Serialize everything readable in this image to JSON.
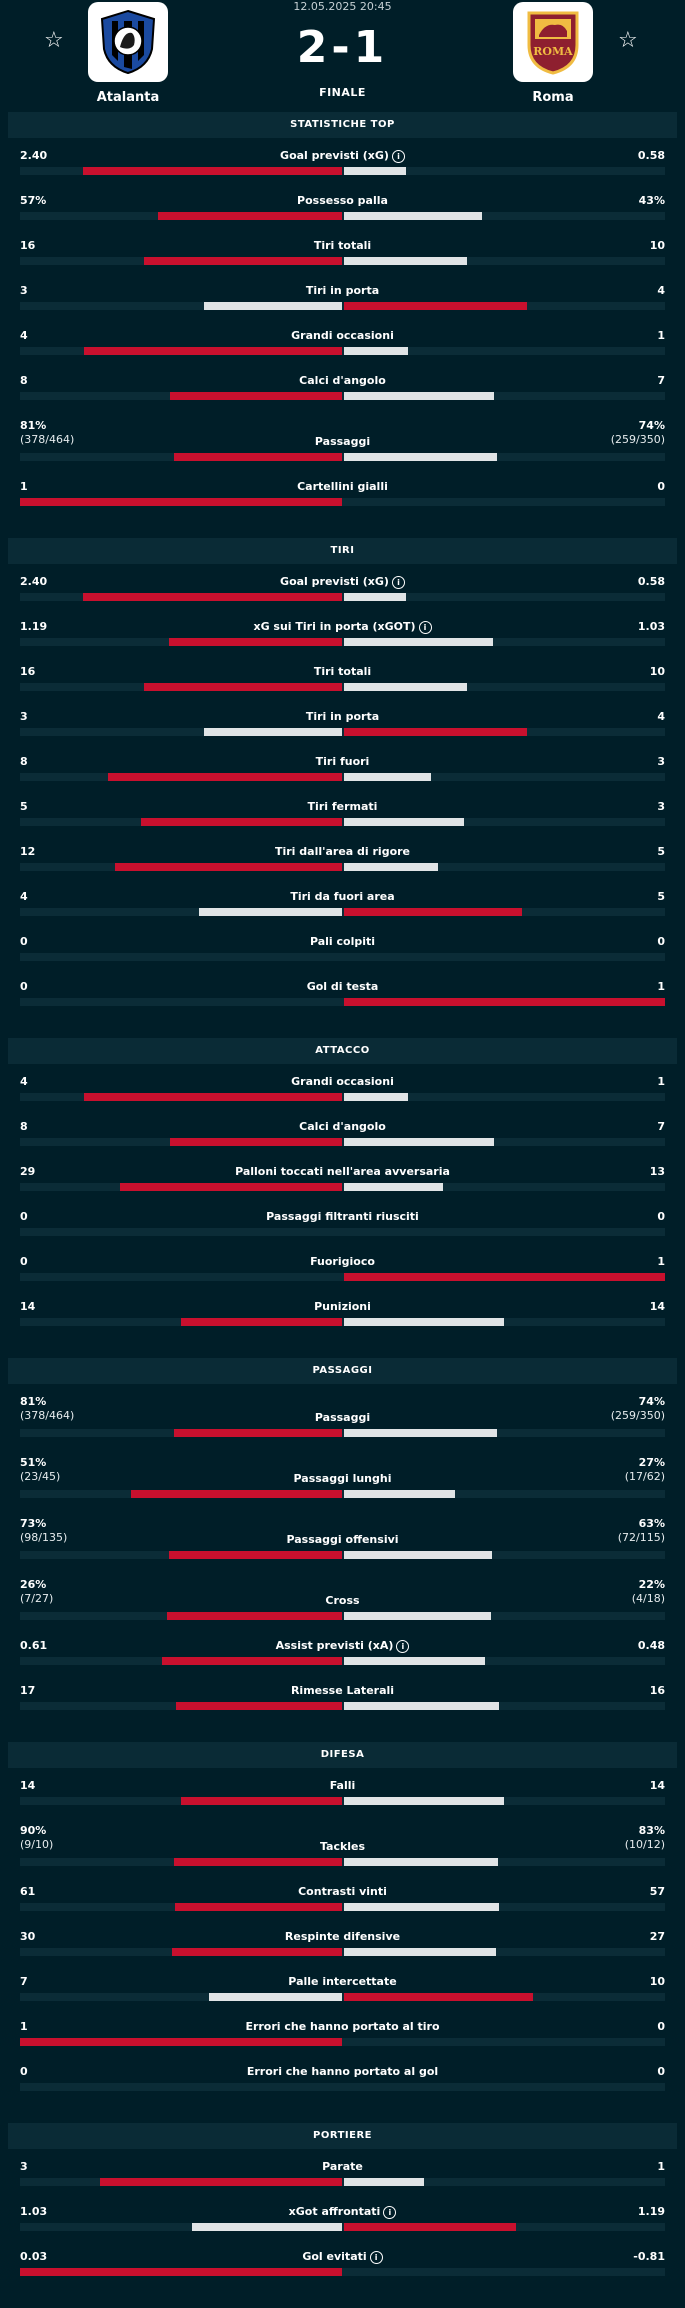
{
  "match": {
    "datetime": "12.05.2025 20:45",
    "score": "2-1",
    "status": "FINALE",
    "home_team": "Atalanta",
    "away_team": "Roma",
    "home_logo_text": "ATALANTA",
    "away_logo_text": "ROMA"
  },
  "icons": {
    "favorite": "star-icon",
    "info": "info-icon"
  },
  "colors": {
    "background": "#001e28",
    "accent": "#c8102e",
    "neutral_bar": "#e0e4e6",
    "track": "#0b2c37"
  },
  "sections": [
    {
      "title": "STATISTICHE TOP",
      "rows": [
        {
          "label": "Goal previsti (xG)",
          "info": true,
          "home": "2.40",
          "away": "0.58",
          "home_value": 2.4,
          "away_value": 0.58
        },
        {
          "label": "Possesso palla",
          "home": "57%",
          "away": "43%",
          "home_value": 57,
          "away_value": 43
        },
        {
          "label": "Tiri totali",
          "home": "16",
          "away": "10",
          "home_value": 16,
          "away_value": 10
        },
        {
          "label": "Tiri in porta",
          "home": "3",
          "away": "4",
          "home_value": 3,
          "away_value": 4
        },
        {
          "label": "Grandi occasioni",
          "home": "4",
          "away": "1",
          "home_value": 4,
          "away_value": 1
        },
        {
          "label": "Calci d'angolo",
          "home": "8",
          "away": "7",
          "home_value": 8,
          "away_value": 7
        },
        {
          "label": "Passaggi",
          "home": "81%",
          "home_sub": "(378/464)",
          "away": "74%",
          "away_sub": "(259/350)",
          "home_value": 81,
          "away_value": 74
        },
        {
          "label": "Cartellini gialli",
          "home": "1",
          "away": "0",
          "home_value": 1,
          "away_value": 0
        }
      ]
    },
    {
      "title": "TIRI",
      "rows": [
        {
          "label": "Goal previsti (xG)",
          "info": true,
          "home": "2.40",
          "away": "0.58",
          "home_value": 2.4,
          "away_value": 0.58
        },
        {
          "label": "xG sui Tiri in porta (xGOT)",
          "info": true,
          "home": "1.19",
          "away": "1.03",
          "home_value": 1.19,
          "away_value": 1.03
        },
        {
          "label": "Tiri totali",
          "home": "16",
          "away": "10",
          "home_value": 16,
          "away_value": 10
        },
        {
          "label": "Tiri in porta",
          "home": "3",
          "away": "4",
          "home_value": 3,
          "away_value": 4
        },
        {
          "label": "Tiri fuori",
          "home": "8",
          "away": "3",
          "home_value": 8,
          "away_value": 3
        },
        {
          "label": "Tiri fermati",
          "home": "5",
          "away": "3",
          "home_value": 5,
          "away_value": 3
        },
        {
          "label": "Tiri dall'area di rigore",
          "home": "12",
          "away": "5",
          "home_value": 12,
          "away_value": 5
        },
        {
          "label": "Tiri da fuori area",
          "home": "4",
          "away": "5",
          "home_value": 4,
          "away_value": 5
        },
        {
          "label": "Pali colpiti",
          "home": "0",
          "away": "0",
          "home_value": 0,
          "away_value": 0
        },
        {
          "label": "Gol di testa",
          "home": "0",
          "away": "1",
          "home_value": 0,
          "away_value": 1
        }
      ]
    },
    {
      "title": "ATTACCO",
      "rows": [
        {
          "label": "Grandi occasioni",
          "home": "4",
          "away": "1",
          "home_value": 4,
          "away_value": 1
        },
        {
          "label": "Calci d'angolo",
          "home": "8",
          "away": "7",
          "home_value": 8,
          "away_value": 7
        },
        {
          "label": "Palloni toccati nell'area avversaria",
          "home": "29",
          "away": "13",
          "home_value": 29,
          "away_value": 13
        },
        {
          "label": "Passaggi filtranti riusciti",
          "home": "0",
          "away": "0",
          "home_value": 0,
          "away_value": 0
        },
        {
          "label": "Fuorigioco",
          "home": "0",
          "away": "1",
          "home_value": 0,
          "away_value": 1
        },
        {
          "label": "Punizioni",
          "home": "14",
          "away": "14",
          "home_value": 14,
          "away_value": 14
        }
      ]
    },
    {
      "title": "PASSAGGI",
      "rows": [
        {
          "label": "Passaggi",
          "home": "81%",
          "home_sub": "(378/464)",
          "away": "74%",
          "away_sub": "(259/350)",
          "home_value": 81,
          "away_value": 74
        },
        {
          "label": "Passaggi lunghi",
          "home": "51%",
          "home_sub": "(23/45)",
          "away": "27%",
          "away_sub": "(17/62)",
          "home_value": 51,
          "away_value": 27
        },
        {
          "label": "Passaggi offensivi",
          "home": "73%",
          "home_sub": "(98/135)",
          "away": "63%",
          "away_sub": "(72/115)",
          "home_value": 73,
          "away_value": 63
        },
        {
          "label": "Cross",
          "home": "26%",
          "home_sub": "(7/27)",
          "away": "22%",
          "away_sub": "(4/18)",
          "home_value": 26,
          "away_value": 22
        },
        {
          "label": "Assist previsti (xA)",
          "info": true,
          "home": "0.61",
          "away": "0.48",
          "home_value": 0.61,
          "away_value": 0.48
        },
        {
          "label": "Rimesse Laterali",
          "home": "17",
          "away": "16",
          "home_value": 17,
          "away_value": 16
        }
      ]
    },
    {
      "title": "DIFESA",
      "rows": [
        {
          "label": "Falli",
          "home": "14",
          "away": "14",
          "home_value": 14,
          "away_value": 14
        },
        {
          "label": "Tackles",
          "home": "90%",
          "home_sub": "(9/10)",
          "away": "83%",
          "away_sub": "(10/12)",
          "home_value": 90,
          "away_value": 83
        },
        {
          "label": "Contrasti vinti",
          "home": "61",
          "away": "57",
          "home_value": 61,
          "away_value": 57
        },
        {
          "label": "Respinte difensive",
          "home": "30",
          "away": "27",
          "home_value": 30,
          "away_value": 27
        },
        {
          "label": "Palle intercettate",
          "home": "7",
          "away": "10",
          "home_value": 7,
          "away_value": 10
        },
        {
          "label": "Errori che hanno portato al tiro",
          "home": "1",
          "away": "0",
          "home_value": 1,
          "away_value": 0
        },
        {
          "label": "Errori che hanno portato al gol",
          "home": "0",
          "away": "0",
          "home_value": 0,
          "away_value": 0
        }
      ]
    },
    {
      "title": "PORTIERE",
      "rows": [
        {
          "label": "Parate",
          "home": "3",
          "away": "1",
          "home_value": 3,
          "away_value": 1
        },
        {
          "label": "xGot affrontati",
          "info": true,
          "home": "1.03",
          "away": "1.19",
          "home_value": 1.03,
          "away_value": 1.19
        },
        {
          "label": "Gol evitati",
          "info": true,
          "home": "0.03",
          "away": "-0.81",
          "home_value": 0.03,
          "away_value": -0.81
        }
      ]
    }
  ]
}
